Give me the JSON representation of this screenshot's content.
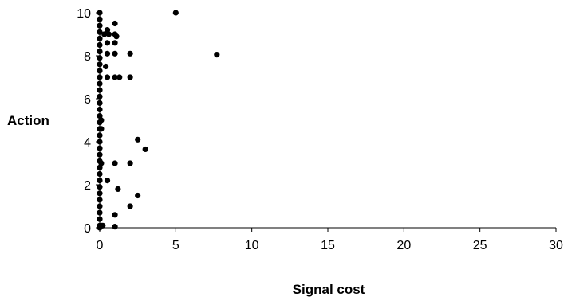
{
  "chart_data": {
    "type": "scatter",
    "title": "",
    "xlabel": "Signal cost",
    "ylabel": "Action",
    "xlim": [
      0,
      30
    ],
    "ylim": [
      0,
      10
    ],
    "xticks": [
      0,
      5,
      10,
      15,
      20,
      25,
      30
    ],
    "yticks": [
      0,
      2,
      4,
      6,
      8,
      10
    ],
    "grid": false,
    "legend": "none",
    "marker_color": "#000000",
    "series": [
      {
        "points": [
          {
            "x": 0,
            "y": 10
          },
          {
            "x": 0,
            "y": 9.7
          },
          {
            "x": 0,
            "y": 9.4
          },
          {
            "x": 0,
            "y": 9.1
          },
          {
            "x": 0,
            "y": 8.8
          },
          {
            "x": 0,
            "y": 8.5
          },
          {
            "x": 0,
            "y": 8.2
          },
          {
            "x": 0,
            "y": 7.9
          },
          {
            "x": 0,
            "y": 7.6
          },
          {
            "x": 0,
            "y": 7.3
          },
          {
            "x": 0,
            "y": 7.0
          },
          {
            "x": 0,
            "y": 6.7
          },
          {
            "x": 0,
            "y": 6.4
          },
          {
            "x": 0,
            "y": 6.1
          },
          {
            "x": 0,
            "y": 5.8
          },
          {
            "x": 0,
            "y": 5.5
          },
          {
            "x": 0,
            "y": 5.2
          },
          {
            "x": 0,
            "y": 4.9
          },
          {
            "x": 0,
            "y": 4.6
          },
          {
            "x": 0,
            "y": 4.3
          },
          {
            "x": 0,
            "y": 4.0
          },
          {
            "x": 0,
            "y": 3.7
          },
          {
            "x": 0,
            "y": 3.4
          },
          {
            "x": 0,
            "y": 3.1
          },
          {
            "x": 0,
            "y": 2.8
          },
          {
            "x": 0,
            "y": 2.5
          },
          {
            "x": 0,
            "y": 2.2
          },
          {
            "x": 0,
            "y": 1.9
          },
          {
            "x": 0,
            "y": 1.6
          },
          {
            "x": 0,
            "y": 1.3
          },
          {
            "x": 0,
            "y": 1.0
          },
          {
            "x": 0,
            "y": 0.7
          },
          {
            "x": 0,
            "y": 0.4
          },
          {
            "x": 0,
            "y": 0.1
          },
          {
            "x": 0,
            "y": 0
          },
          {
            "x": 0.1,
            "y": 5.0
          },
          {
            "x": 0.1,
            "y": 4.6
          },
          {
            "x": 0.1,
            "y": 3.0
          },
          {
            "x": 0.1,
            "y": 0.1
          },
          {
            "x": 0.2,
            "y": 0.1
          },
          {
            "x": 0.3,
            "y": 9.0
          },
          {
            "x": 0.5,
            "y": 9.2
          },
          {
            "x": 0.6,
            "y": 9.0
          },
          {
            "x": 0.5,
            "y": 8.6
          },
          {
            "x": 0.5,
            "y": 8.1
          },
          {
            "x": 0.4,
            "y": 7.5
          },
          {
            "x": 0.5,
            "y": 7.0
          },
          {
            "x": 0.5,
            "y": 2.2
          },
          {
            "x": 1.0,
            "y": 9.5
          },
          {
            "x": 1.0,
            "y": 9.0
          },
          {
            "x": 1.1,
            "y": 8.9
          },
          {
            "x": 1.0,
            "y": 8.6
          },
          {
            "x": 1.0,
            "y": 8.1
          },
          {
            "x": 1.0,
            "y": 7.0
          },
          {
            "x": 1.3,
            "y": 7.0
          },
          {
            "x": 1.0,
            "y": 3.0
          },
          {
            "x": 1.2,
            "y": 1.8
          },
          {
            "x": 1.0,
            "y": 0.6
          },
          {
            "x": 1.0,
            "y": 0.05
          },
          {
            "x": 2.0,
            "y": 8.1
          },
          {
            "x": 2.0,
            "y": 7.0
          },
          {
            "x": 2.0,
            "y": 3.0
          },
          {
            "x": 2.0,
            "y": 1.0
          },
          {
            "x": 2.5,
            "y": 4.1
          },
          {
            "x": 3.0,
            "y": 3.65
          },
          {
            "x": 2.5,
            "y": 1.5
          },
          {
            "x": 5.0,
            "y": 10.0
          },
          {
            "x": 7.7,
            "y": 8.05
          }
        ]
      }
    ]
  }
}
